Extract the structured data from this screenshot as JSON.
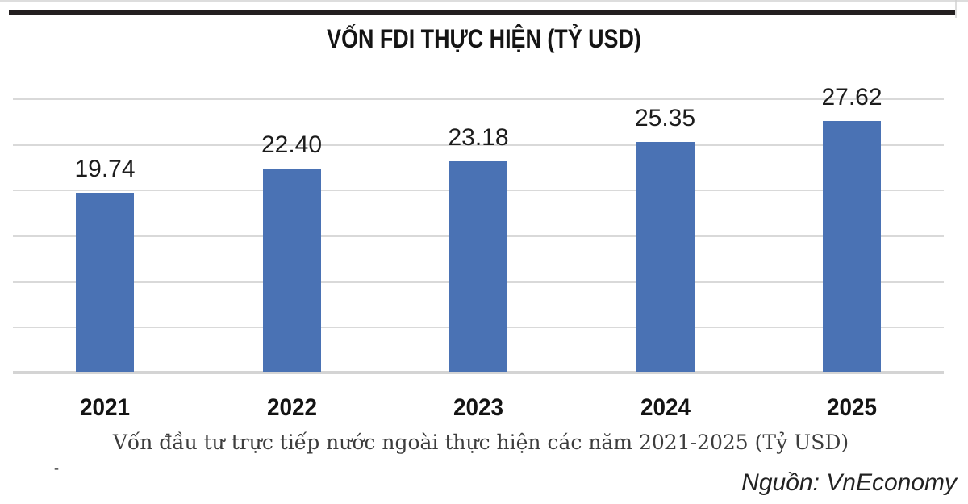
{
  "header": {
    "title": "VỐN FDI THỰC HIỆN (TỶ USD)"
  },
  "chart_data": {
    "type": "bar",
    "title": "VỐN FDI THỰC HIỆN (TỶ USD)",
    "categories": [
      "2021",
      "2022",
      "2023",
      "2024",
      "2025"
    ],
    "values": [
      19.74,
      22.4,
      23.18,
      25.35,
      27.62
    ],
    "value_labels": [
      "19.74",
      "22.40",
      "23.18",
      "25.35",
      "27.62"
    ],
    "xlabel": "",
    "ylabel": "",
    "ylim": [
      0,
      30
    ],
    "gridline_values": [
      5,
      10,
      15,
      20,
      25,
      30
    ],
    "grid": "horizontal-only, no tick labels",
    "legend": "none",
    "bar_color": "#4a72b4"
  },
  "caption": {
    "text": "Vốn đầu tư trực tiếp nước ngoài thực hiện các năm 2021-2025 (Tỷ USD)"
  },
  "source": {
    "text": "Nguồn: VnEconomy"
  },
  "misc": {
    "stray_dash": "-"
  },
  "colors": {
    "bar": "#4a72b4",
    "grid": "#d9d9d9",
    "baseline": "#d4d4d4",
    "header_rule": "#231f20",
    "title_text": "#141414",
    "caption_text": "#3d3d3d",
    "source_text": "#222222"
  }
}
